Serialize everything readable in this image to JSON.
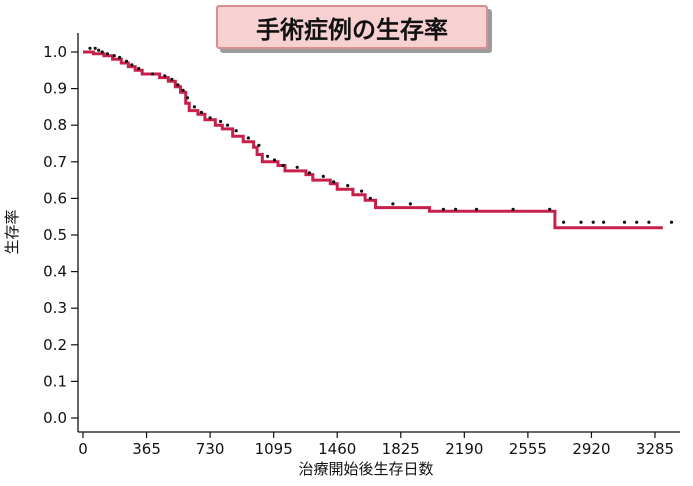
{
  "chart_data": {
    "type": "line",
    "title": "手術症例の生存率",
    "xlabel": "治療開始後生存日数",
    "ylabel": "生存率",
    "xlim": [
      0,
      3400
    ],
    "ylim": [
      0,
      1.0
    ],
    "x_ticks": [
      "0",
      "365",
      "730",
      "1095",
      "1460",
      "1825",
      "2190",
      "2555",
      "2920",
      "3285"
    ],
    "x_tick_values": [
      0,
      365,
      730,
      1095,
      1460,
      1825,
      2190,
      2555,
      2920,
      3285
    ],
    "y_ticks": [
      "0.0",
      "0.1",
      "0.2",
      "0.3",
      "0.4",
      "0.5",
      "0.6",
      "0.7",
      "0.8",
      "0.9",
      "1.0"
    ],
    "y_tick_values": [
      0.0,
      0.1,
      0.2,
      0.3,
      0.4,
      0.5,
      0.6,
      0.7,
      0.8,
      0.9,
      1.0
    ],
    "grid": false,
    "series": [
      {
        "color": "#c8204a",
        "steps": [
          [
            0,
            1.0
          ],
          [
            60,
            0.995
          ],
          [
            120,
            0.99
          ],
          [
            170,
            0.98
          ],
          [
            220,
            0.97
          ],
          [
            260,
            0.96
          ],
          [
            300,
            0.95
          ],
          [
            340,
            0.94
          ],
          [
            440,
            0.93
          ],
          [
            490,
            0.92
          ],
          [
            530,
            0.905
          ],
          [
            560,
            0.89
          ],
          [
            590,
            0.86
          ],
          [
            610,
            0.84
          ],
          [
            660,
            0.83
          ],
          [
            700,
            0.815
          ],
          [
            760,
            0.8
          ],
          [
            800,
            0.79
          ],
          [
            860,
            0.77
          ],
          [
            920,
            0.755
          ],
          [
            980,
            0.74
          ],
          [
            1000,
            0.72
          ],
          [
            1030,
            0.7
          ],
          [
            1120,
            0.69
          ],
          [
            1160,
            0.675
          ],
          [
            1280,
            0.665
          ],
          [
            1320,
            0.65
          ],
          [
            1420,
            0.64
          ],
          [
            1460,
            0.625
          ],
          [
            1550,
            0.61
          ],
          [
            1620,
            0.595
          ],
          [
            1680,
            0.575
          ],
          [
            1990,
            0.565
          ],
          [
            2710,
            0.52
          ],
          [
            3330,
            0.52
          ]
        ],
        "censored": [
          [
            40,
            1.01
          ],
          [
            70,
            1.01
          ],
          [
            90,
            1.005
          ],
          [
            110,
            1.0
          ],
          [
            140,
            0.995
          ],
          [
            180,
            0.99
          ],
          [
            210,
            0.985
          ],
          [
            250,
            0.975
          ],
          [
            280,
            0.965
          ],
          [
            320,
            0.955
          ],
          [
            400,
            0.94
          ],
          [
            470,
            0.935
          ],
          [
            510,
            0.925
          ],
          [
            545,
            0.91
          ],
          [
            575,
            0.895
          ],
          [
            600,
            0.875
          ],
          [
            640,
            0.85
          ],
          [
            680,
            0.835
          ],
          [
            730,
            0.82
          ],
          [
            790,
            0.81
          ],
          [
            830,
            0.8
          ],
          [
            880,
            0.785
          ],
          [
            950,
            0.765
          ],
          [
            1010,
            0.745
          ],
          [
            1060,
            0.715
          ],
          [
            1100,
            0.705
          ],
          [
            1150,
            0.69
          ],
          [
            1230,
            0.685
          ],
          [
            1300,
            0.67
          ],
          [
            1380,
            0.66
          ],
          [
            1440,
            0.645
          ],
          [
            1520,
            0.635
          ],
          [
            1600,
            0.62
          ],
          [
            1650,
            0.6
          ],
          [
            1780,
            0.585
          ],
          [
            1880,
            0.585
          ],
          [
            2070,
            0.57
          ],
          [
            2140,
            0.57
          ],
          [
            2260,
            0.57
          ],
          [
            2470,
            0.57
          ],
          [
            2680,
            0.57
          ],
          [
            2760,
            0.535
          ],
          [
            2860,
            0.535
          ],
          [
            2930,
            0.535
          ],
          [
            2990,
            0.535
          ],
          [
            3110,
            0.535
          ],
          [
            3180,
            0.535
          ],
          [
            3250,
            0.535
          ],
          [
            3380,
            0.535
          ]
        ]
      }
    ]
  }
}
